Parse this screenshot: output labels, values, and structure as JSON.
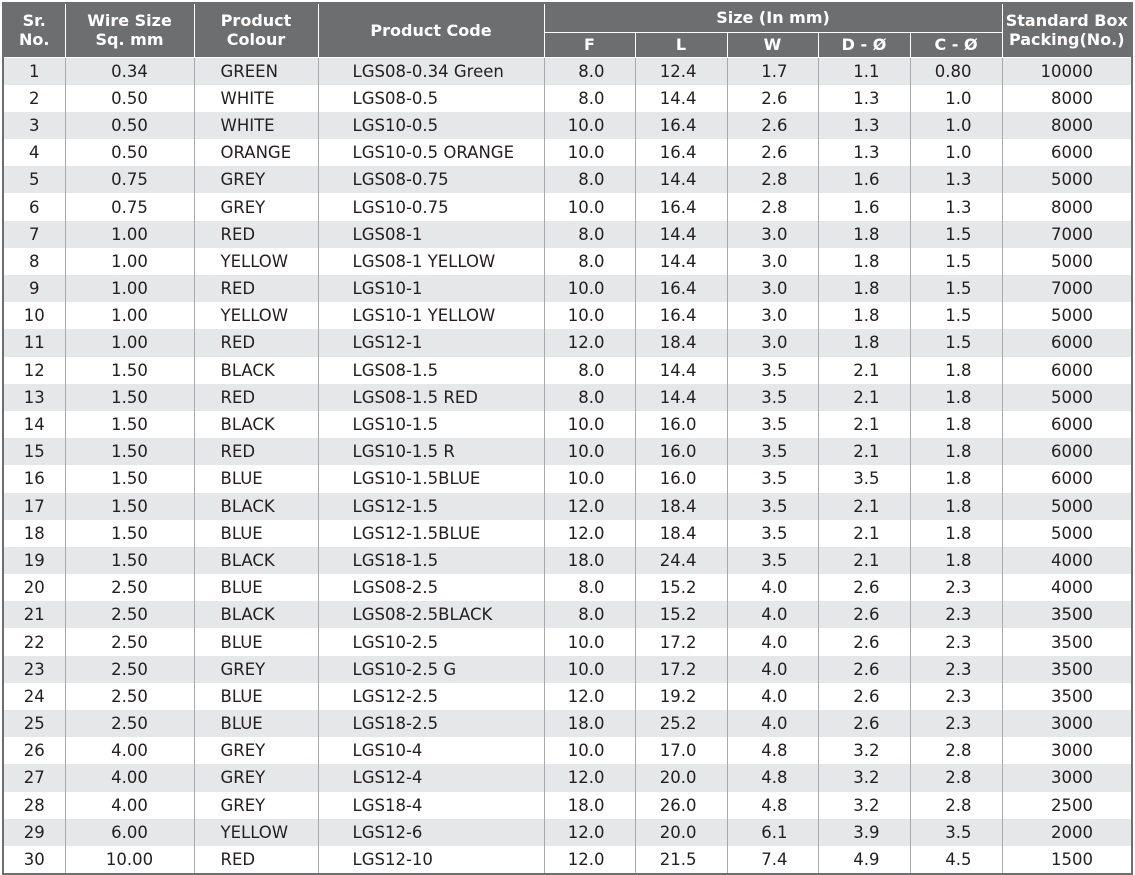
{
  "table": {
    "headers": [
      [
        "Sr.",
        "No."
      ],
      [
        "Wire Size",
        "Sq. mm"
      ],
      [
        "Product",
        "Colour"
      ],
      [
        "Product Code"
      ],
      [
        "Standard Box",
        "Packing(No.)"
      ]
    ],
    "size_group": "Size (In mm)",
    "size_columns": [
      "F",
      "L",
      "W",
      "D - Ø",
      "C - Ø"
    ],
    "rows": [
      [
        "1",
        "0.34",
        "GREEN",
        "LGS08-0.34 Green",
        "8.0",
        "12.4",
        "1.7",
        "1.1",
        "0.80",
        "10000"
      ],
      [
        "2",
        "0.50",
        "WHITE",
        "LGS08-0.5",
        "8.0",
        "14.4",
        "2.6",
        "1.3",
        "1.0",
        "8000"
      ],
      [
        "3",
        "0.50",
        "WHITE",
        "LGS10-0.5",
        "10.0",
        "16.4",
        "2.6",
        "1.3",
        "1.0",
        "8000"
      ],
      [
        "4",
        "0.50",
        "ORANGE",
        "LGS10-0.5 ORANGE",
        "10.0",
        "16.4",
        "2.6",
        "1.3",
        "1.0",
        "6000"
      ],
      [
        "5",
        "0.75",
        "GREY",
        "LGS08-0.75",
        "8.0",
        "14.4",
        "2.8",
        "1.6",
        "1.3",
        "5000"
      ],
      [
        "6",
        "0.75",
        "GREY",
        "LGS10-0.75",
        "10.0",
        "16.4",
        "2.8",
        "1.6",
        "1.3",
        "8000"
      ],
      [
        "7",
        "1.00",
        "RED",
        "LGS08-1",
        "8.0",
        "14.4",
        "3.0",
        "1.8",
        "1.5",
        "7000"
      ],
      [
        "8",
        "1.00",
        "YELLOW",
        "LGS08-1 YELLOW",
        "8.0",
        "14.4",
        "3.0",
        "1.8",
        "1.5",
        "5000"
      ],
      [
        "9",
        "1.00",
        "RED",
        "LGS10-1",
        "10.0",
        "16.4",
        "3.0",
        "1.8",
        "1.5",
        "7000"
      ],
      [
        "10",
        "1.00",
        "YELLOW",
        "LGS10-1 YELLOW",
        "10.0",
        "16.4",
        "3.0",
        "1.8",
        "1.5",
        "5000"
      ],
      [
        "11",
        "1.00",
        "RED",
        "LGS12-1",
        "12.0",
        "18.4",
        "3.0",
        "1.8",
        "1.5",
        "6000"
      ],
      [
        "12",
        "1.50",
        "BLACK",
        "LGS08-1.5",
        "8.0",
        "14.4",
        "3.5",
        "2.1",
        "1.8",
        "6000"
      ],
      [
        "13",
        "1.50",
        "RED",
        "LGS08-1.5 RED",
        "8.0",
        "14.4",
        "3.5",
        "2.1",
        "1.8",
        "5000"
      ],
      [
        "14",
        "1.50",
        "BLACK",
        "LGS10-1.5",
        "10.0",
        "16.0",
        "3.5",
        "2.1",
        "1.8",
        "6000"
      ],
      [
        "15",
        "1.50",
        "RED",
        "LGS10-1.5 R",
        "10.0",
        "16.0",
        "3.5",
        "2.1",
        "1.8",
        "6000"
      ],
      [
        "16",
        "1.50",
        "BLUE",
        "LGS10-1.5BLUE",
        "10.0",
        "16.0",
        "3.5",
        "3.5",
        "1.8",
        "6000"
      ],
      [
        "17",
        "1.50",
        "BLACK",
        "LGS12-1.5",
        "12.0",
        "18.4",
        "3.5",
        "2.1",
        "1.8",
        "5000"
      ],
      [
        "18",
        "1.50",
        "BLUE",
        "LGS12-1.5BLUE",
        "12.0",
        "18.4",
        "3.5",
        "2.1",
        "1.8",
        "5000"
      ],
      [
        "19",
        "1.50",
        "BLACK",
        "LGS18-1.5",
        "18.0",
        "24.4",
        "3.5",
        "2.1",
        "1.8",
        "4000"
      ],
      [
        "20",
        "2.50",
        "BLUE",
        "LGS08-2.5",
        "8.0",
        "15.2",
        "4.0",
        "2.6",
        "2.3",
        "4000"
      ],
      [
        "21",
        "2.50",
        "BLACK",
        "LGS08-2.5BLACK",
        "8.0",
        "15.2",
        "4.0",
        "2.6",
        "2.3",
        "3500"
      ],
      [
        "22",
        "2.50",
        "BLUE",
        "LGS10-2.5",
        "10.0",
        "17.2",
        "4.0",
        "2.6",
        "2.3",
        "3500"
      ],
      [
        "23",
        "2.50",
        "GREY",
        "LGS10-2.5 G",
        "10.0",
        "17.2",
        "4.0",
        "2.6",
        "2.3",
        "3500"
      ],
      [
        "24",
        "2.50",
        "BLUE",
        "LGS12-2.5",
        "12.0",
        "19.2",
        "4.0",
        "2.6",
        "2.3",
        "3500"
      ],
      [
        "25",
        "2.50",
        "BLUE",
        "LGS18-2.5",
        "18.0",
        "25.2",
        "4.0",
        "2.6",
        "2.3",
        "3000"
      ],
      [
        "26",
        "4.00",
        "GREY",
        "LGS10-4",
        "10.0",
        "17.0",
        "4.8",
        "3.2",
        "2.8",
        "3000"
      ],
      [
        "27",
        "4.00",
        "GREY",
        "LGS12-4",
        "12.0",
        "20.0",
        "4.8",
        "3.2",
        "2.8",
        "3000"
      ],
      [
        "28",
        "4.00",
        "GREY",
        "LGS18-4",
        "18.0",
        "26.0",
        "4.8",
        "3.2",
        "2.8",
        "2500"
      ],
      [
        "29",
        "6.00",
        "YELLOW",
        "LGS12-6",
        "12.0",
        "20.0",
        "6.1",
        "3.9",
        "3.5",
        "2000"
      ],
      [
        "30",
        "10.00",
        "RED",
        "LGS12-10",
        "12.0",
        "21.5",
        "7.4",
        "4.9",
        "4.5",
        "1500"
      ]
    ]
  }
}
